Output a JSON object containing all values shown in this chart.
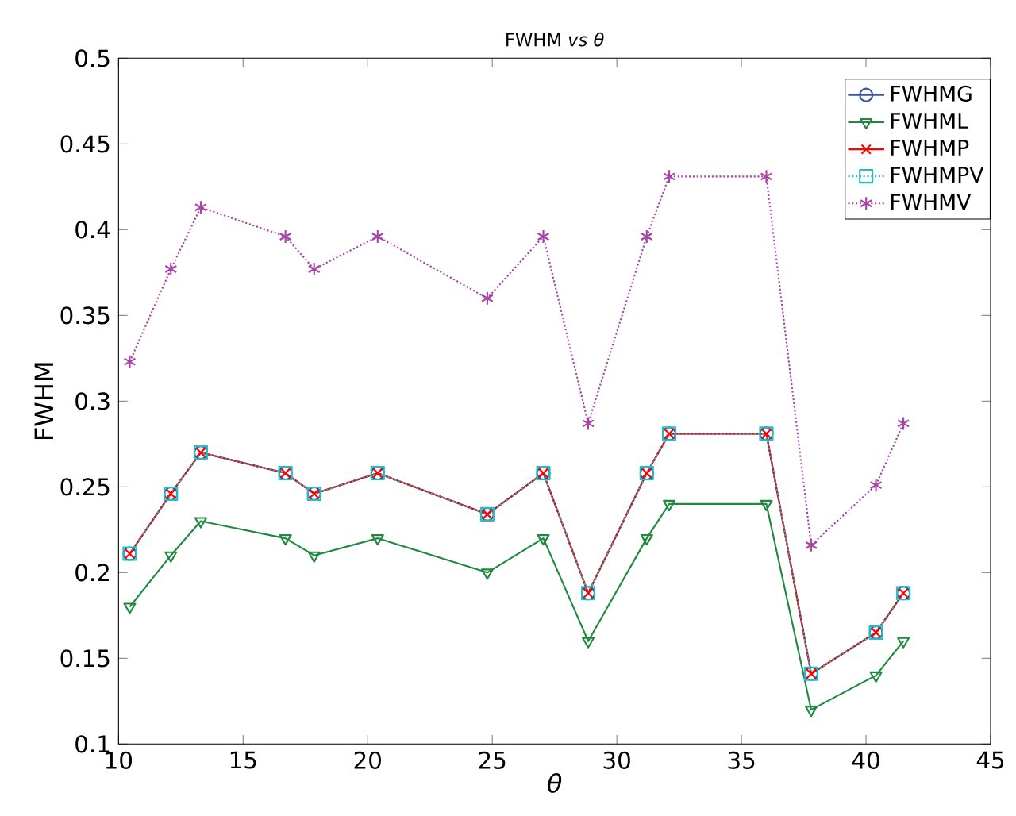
{
  "chart_data": {
    "type": "line",
    "title": "FWHM *vs θ*",
    "xlabel": "θ",
    "ylabel": "FWHM",
    "x": [
      10.45,
      12.1,
      13.3,
      16.7,
      17.85,
      20.4,
      24.8,
      27.05,
      28.85,
      31.2,
      32.1,
      36.0,
      37.8,
      40.4,
      41.5
    ],
    "xlim": [
      10,
      45
    ],
    "xticks": [
      10,
      15,
      20,
      25,
      30,
      35,
      40,
      45
    ],
    "ylim": [
      0.1,
      0.5
    ],
    "yticks": [
      0.1,
      0.15,
      0.2,
      0.25,
      0.3,
      0.35,
      0.4,
      0.45,
      0.5
    ],
    "grid": false,
    "legend": "top right",
    "series": [
      {
        "name": "FWHMG",
        "color": "#3953a4",
        "marker": "circle",
        "line_style": "solid",
        "values": [
          0.211,
          0.246,
          0.27,
          0.258,
          0.246,
          0.258,
          0.234,
          0.258,
          0.188,
          0.258,
          0.281,
          0.281,
          0.141,
          0.165,
          0.188
        ]
      },
      {
        "name": "FWHML",
        "color": "#1f8a3f",
        "marker": "triangle",
        "line_style": "solid",
        "values": [
          0.18,
          0.21,
          0.23,
          0.22,
          0.21,
          0.22,
          0.2,
          0.22,
          0.16,
          0.22,
          0.24,
          0.24,
          0.12,
          0.14,
          0.16
        ]
      },
      {
        "name": "FWHMP",
        "color": "#ff0000",
        "marker": "cross",
        "line_style": "solid",
        "values": [
          0.211,
          0.246,
          0.27,
          0.258,
          0.246,
          0.258,
          0.234,
          0.258,
          0.188,
          0.258,
          0.281,
          0.281,
          0.141,
          0.165,
          0.188
        ]
      },
      {
        "name": "FWHMPV",
        "color": "#1fbfc4",
        "marker": "square",
        "line_style": "dotted",
        "values": [
          0.211,
          0.246,
          0.27,
          0.258,
          0.246,
          0.258,
          0.234,
          0.258,
          0.188,
          0.258,
          0.281,
          0.281,
          0.141,
          0.165,
          0.188
        ]
      },
      {
        "name": "FWHMV",
        "color": "#a843a8",
        "marker": "cross",
        "line_style": "dotted",
        "values": [
          0.323,
          0.377,
          0.413,
          0.396,
          0.377,
          0.396,
          0.36,
          0.396,
          0.287,
          0.396,
          0.431,
          0.431,
          0.216,
          0.251,
          0.287
        ]
      }
    ]
  }
}
